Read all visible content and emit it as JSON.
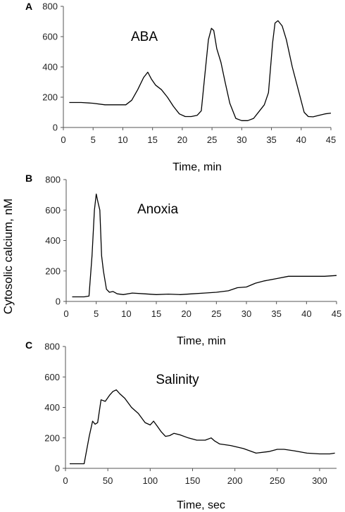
{
  "figure": {
    "shared_ylabel": "Cytosolic calcium, nM"
  },
  "chart_data": [
    {
      "type": "line",
      "panel": "A",
      "annotation": "ABA",
      "xlabel": "Time, min",
      "ylabel": "",
      "xlim": [
        0,
        45
      ],
      "ylim": [
        0,
        800
      ],
      "xticks": [
        0,
        5,
        10,
        15,
        20,
        25,
        30,
        35,
        40,
        45
      ],
      "yticks": [
        0,
        200,
        400,
        600,
        800
      ],
      "series": [
        {
          "x": [
            1,
            3,
            5,
            7,
            9,
            10.5,
            11.5,
            12.5,
            13.5,
            14.2,
            14.8,
            15.5,
            16.5,
            17.5,
            18.5,
            19.5,
            20.5,
            21.5,
            22.5,
            23.2,
            23.8,
            24.4,
            24.9,
            25.3,
            25.8,
            26.5,
            27.2,
            28,
            29,
            30,
            31,
            32,
            33,
            33.8,
            34.5,
            35.2,
            35.6,
            36.1,
            36.8,
            37.5,
            38.5,
            39.5,
            40.5,
            41.2,
            42,
            43,
            44,
            45
          ],
          "y": [
            165,
            165,
            160,
            150,
            150,
            150,
            180,
            250,
            330,
            365,
            320,
            280,
            250,
            200,
            140,
            90,
            72,
            72,
            80,
            110,
            350,
            580,
            655,
            640,
            520,
            430,
            300,
            160,
            60,
            45,
            45,
            60,
            110,
            150,
            230,
            560,
            690,
            705,
            670,
            580,
            400,
            250,
            100,
            72,
            70,
            80,
            90,
            95
          ]
        }
      ]
    },
    {
      "type": "line",
      "panel": "B",
      "annotation": "Anoxia",
      "xlabel": "Time, min",
      "ylabel": "",
      "xlim": [
        0,
        45
      ],
      "ylim": [
        0,
        800
      ],
      "xticks": [
        0,
        5,
        10,
        15,
        20,
        25,
        30,
        35,
        40,
        45
      ],
      "yticks": [
        0,
        200,
        400,
        600,
        800
      ],
      "series": [
        {
          "x": [
            1,
            2,
            3,
            3.8,
            4.3,
            4.7,
            5.0,
            5.3,
            5.6,
            5.9,
            6.2,
            6.7,
            7.2,
            7.8,
            8.5,
            9.5,
            11,
            13,
            15,
            17,
            19,
            21,
            23,
            25,
            27,
            28.5,
            30,
            31.5,
            33,
            35,
            37,
            39,
            41,
            43,
            45
          ],
          "y": [
            30,
            30,
            30,
            35,
            300,
            600,
            705,
            650,
            600,
            300,
            200,
            80,
            60,
            65,
            50,
            45,
            55,
            50,
            45,
            48,
            45,
            50,
            55,
            60,
            70,
            90,
            95,
            120,
            135,
            150,
            165,
            165,
            165,
            165,
            170
          ]
        }
      ]
    },
    {
      "type": "line",
      "panel": "C",
      "annotation": "Salinity",
      "xlabel": "Time, sec",
      "ylabel": "",
      "xlim": [
        0,
        320
      ],
      "ylim": [
        0,
        800
      ],
      "xticks": [
        0,
        50,
        100,
        150,
        200,
        250,
        300
      ],
      "yticks": [
        0,
        200,
        400,
        600,
        800
      ],
      "series": [
        {
          "x": [
            5,
            15,
            22,
            28,
            32,
            35,
            38,
            42,
            47,
            52,
            56,
            60,
            64,
            70,
            78,
            86,
            94,
            100,
            104,
            108,
            113,
            118,
            123,
            128,
            135,
            145,
            155,
            165,
            172,
            176,
            182,
            195,
            210,
            225,
            240,
            250,
            258,
            270,
            285,
            300,
            312,
            318
          ],
          "y": [
            30,
            30,
            30,
            210,
            310,
            290,
            300,
            450,
            440,
            480,
            505,
            515,
            490,
            460,
            400,
            360,
            300,
            285,
            310,
            280,
            240,
            210,
            215,
            230,
            220,
            200,
            185,
            185,
            200,
            180,
            160,
            150,
            130,
            100,
            110,
            125,
            125,
            115,
            100,
            95,
            95,
            100
          ]
        }
      ]
    }
  ]
}
